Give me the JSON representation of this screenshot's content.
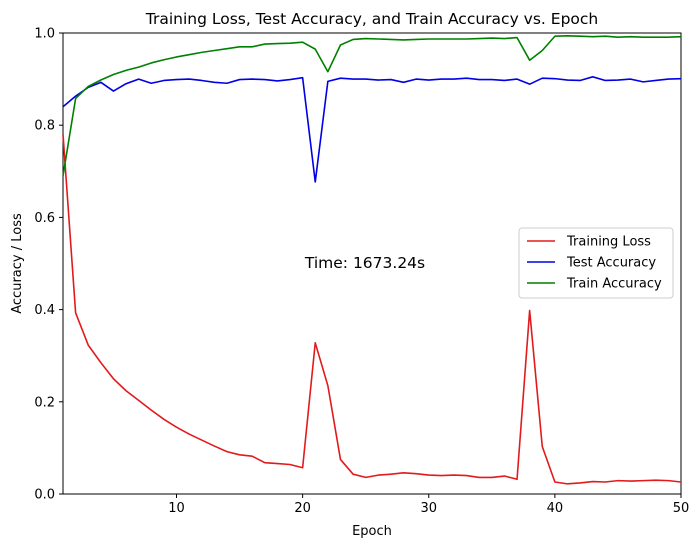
{
  "chart_data": {
    "type": "line",
    "title": "Training Loss, Test Accuracy, and Train Accuracy vs. Epoch",
    "xlabel": "Epoch",
    "ylabel": "Accuracy / Loss",
    "xlim": [
      1,
      50
    ],
    "ylim": [
      0,
      1.0
    ],
    "xticks": [
      10,
      20,
      30,
      40,
      50
    ],
    "yticks": [
      0.0,
      0.2,
      0.4,
      0.6,
      0.8,
      1.0
    ],
    "grid": false,
    "legend_position": "center-right",
    "annotation": "Time: 1673.24s",
    "x": [
      1,
      2,
      3,
      4,
      5,
      6,
      7,
      8,
      9,
      10,
      11,
      12,
      13,
      14,
      15,
      16,
      17,
      18,
      19,
      20,
      21,
      22,
      23,
      24,
      25,
      26,
      27,
      28,
      29,
      30,
      31,
      32,
      33,
      34,
      35,
      36,
      37,
      38,
      39,
      40,
      41,
      42,
      43,
      44,
      45,
      46,
      47,
      48,
      49,
      50
    ],
    "series": [
      {
        "name": "Training Loss",
        "color": "#e31a1c",
        "values": [
          0.78,
          0.393,
          0.323,
          0.285,
          0.25,
          0.224,
          0.203,
          0.182,
          0.162,
          0.145,
          0.13,
          0.117,
          0.104,
          0.092,
          0.085,
          0.082,
          0.068,
          0.066,
          0.064,
          0.057,
          0.328,
          0.235,
          0.075,
          0.043,
          0.036,
          0.041,
          0.043,
          0.046,
          0.044,
          0.041,
          0.04,
          0.041,
          0.04,
          0.036,
          0.036,
          0.039,
          0.032,
          0.398,
          0.103,
          0.026,
          0.022,
          0.024,
          0.027,
          0.026,
          0.029,
          0.028,
          0.029,
          0.03,
          0.029,
          0.026
        ]
      },
      {
        "name": "Test Accuracy",
        "color": "#0000e6",
        "values": [
          0.84,
          0.863,
          0.882,
          0.893,
          0.874,
          0.89,
          0.9,
          0.891,
          0.897,
          0.899,
          0.9,
          0.897,
          0.893,
          0.891,
          0.899,
          0.9,
          0.899,
          0.896,
          0.899,
          0.903,
          0.677,
          0.895,
          0.902,
          0.9,
          0.9,
          0.898,
          0.899,
          0.893,
          0.9,
          0.898,
          0.9,
          0.9,
          0.902,
          0.899,
          0.899,
          0.897,
          0.9,
          0.889,
          0.902,
          0.901,
          0.898,
          0.897,
          0.905,
          0.897,
          0.898,
          0.9,
          0.894,
          0.897,
          0.9,
          0.901
        ]
      },
      {
        "name": "Train Accuracy",
        "color": "#008000",
        "values": [
          0.69,
          0.858,
          0.884,
          0.898,
          0.91,
          0.919,
          0.926,
          0.935,
          0.942,
          0.948,
          0.953,
          0.958,
          0.962,
          0.966,
          0.97,
          0.97,
          0.976,
          0.977,
          0.978,
          0.98,
          0.965,
          0.916,
          0.974,
          0.986,
          0.988,
          0.987,
          0.986,
          0.985,
          0.986,
          0.987,
          0.987,
          0.987,
          0.987,
          0.988,
          0.989,
          0.988,
          0.99,
          0.941,
          0.962,
          0.993,
          0.994,
          0.993,
          0.992,
          0.993,
          0.991,
          0.992,
          0.991,
          0.991,
          0.991,
          0.992
        ]
      }
    ]
  }
}
